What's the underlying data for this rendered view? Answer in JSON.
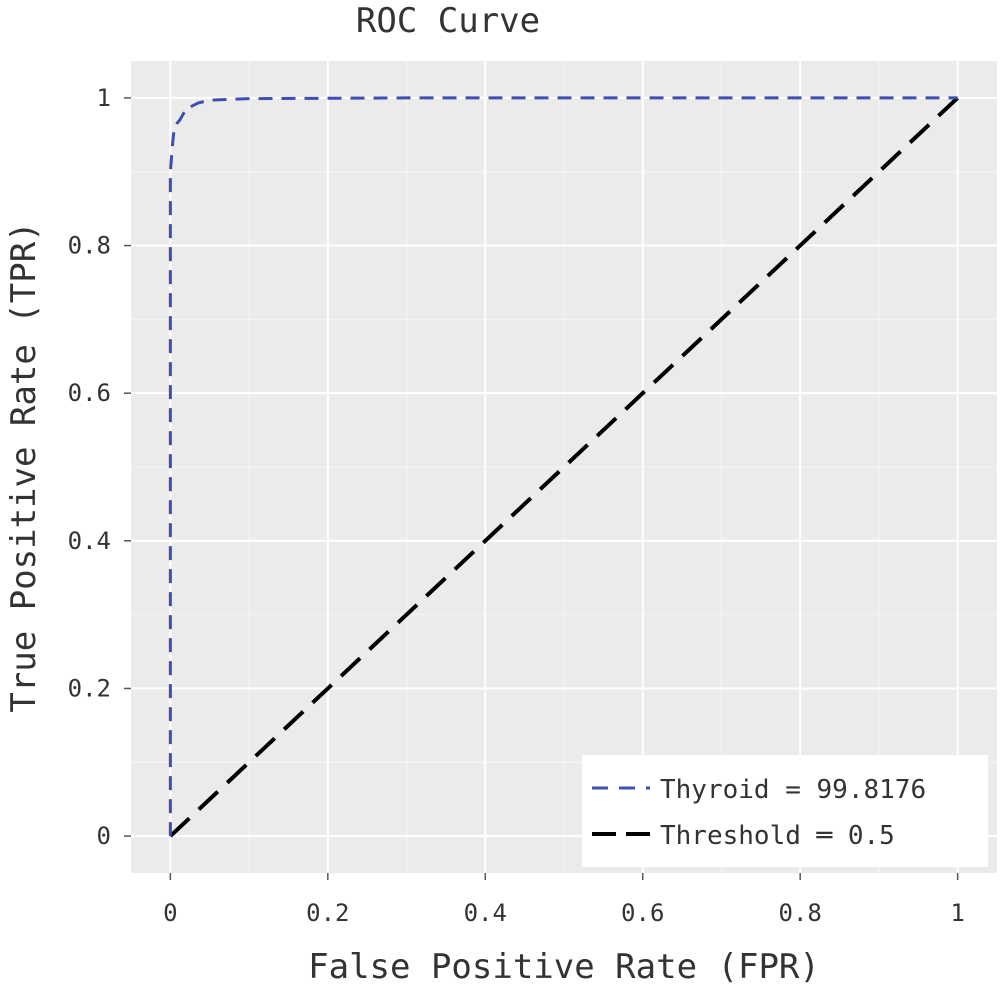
{
  "chart_data": {
    "type": "line",
    "title": "ROC Curve",
    "xlabel": "False Positive Rate (FPR)",
    "ylabel": "True Positive Rate (TPR)",
    "xlim": [
      -0.05,
      1.05
    ],
    "ylim": [
      -0.05,
      1.05
    ],
    "x_ticks": [
      0,
      0.2,
      0.4,
      0.6,
      0.8,
      1
    ],
    "x_tick_labels": [
      "0",
      "0.2",
      "0.4",
      "0.6",
      "0.8",
      "1"
    ],
    "y_ticks": [
      0,
      0.2,
      0.4,
      0.6,
      0.8,
      1
    ],
    "y_tick_labels": [
      "0",
      "0.2",
      "0.4",
      "0.6",
      "0.8",
      "1"
    ],
    "grid": true,
    "legend_position": "bottom-right",
    "series": [
      {
        "name": "Thyroid = 99.8176",
        "style": "dashed",
        "color": "#3f4fb0",
        "x": [
          0,
          0,
          0.003,
          0.005,
          0.008,
          0.012,
          0.02,
          0.035,
          0.05,
          0.1,
          0.3,
          0.6,
          1.0
        ],
        "y": [
          0,
          0.9,
          0.94,
          0.96,
          0.965,
          0.97,
          0.985,
          0.993,
          0.997,
          0.999,
          1.0,
          1.0,
          1.0
        ]
      },
      {
        "name": "Threshold = 0.5",
        "style": "dashed",
        "color": "#000000",
        "x": [
          0,
          1
        ],
        "y": [
          0,
          1
        ]
      }
    ],
    "legend_labels": [
      "Thyroid = 99.8176",
      "Threshold ═ 0.5"
    ]
  }
}
